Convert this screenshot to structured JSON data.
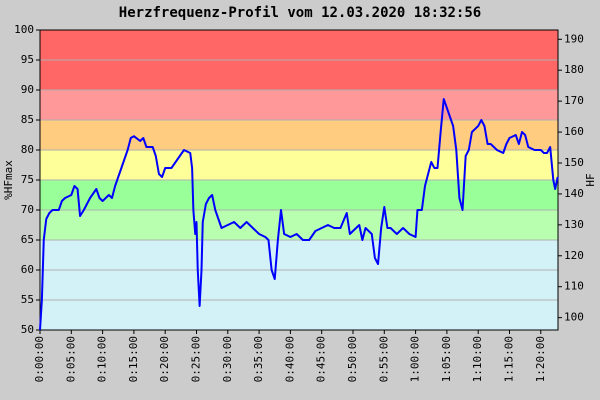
{
  "chart_data": {
    "type": "line",
    "title": "Herzfrequenz-Profil vom 12.03.2020 18:32:56",
    "y_label": "%HFmax",
    "y2_label": "HF",
    "color": "#0000ff",
    "grid": true,
    "xlim": [
      0,
      4965
    ],
    "ylim": [
      50,
      100
    ],
    "y2lim": [
      96,
      193
    ],
    "yticks": [
      50,
      55,
      60,
      65,
      70,
      75,
      80,
      85,
      90,
      95,
      100
    ],
    "y2ticks": [
      100,
      110,
      120,
      130,
      140,
      150,
      160,
      170,
      180,
      190
    ],
    "xticks": [
      {
        "value": 0,
        "label": "0:00:00"
      },
      {
        "value": 300,
        "label": "0:05:00"
      },
      {
        "value": 600,
        "label": "0:10:00"
      },
      {
        "value": 900,
        "label": "0:15:00"
      },
      {
        "value": 1200,
        "label": "0:20:00"
      },
      {
        "value": 1500,
        "label": "0:25:00"
      },
      {
        "value": 1800,
        "label": "0:30:00"
      },
      {
        "value": 2100,
        "label": "0:35:00"
      },
      {
        "value": 2400,
        "label": "0:40:00"
      },
      {
        "value": 2700,
        "label": "0:45:00"
      },
      {
        "value": 3000,
        "label": "0:50:00"
      },
      {
        "value": 3300,
        "label": "0:55:00"
      },
      {
        "value": 3600,
        "label": "1:00:00"
      },
      {
        "value": 3900,
        "label": "1:05:00"
      },
      {
        "value": 4200,
        "label": "1:10:00"
      },
      {
        "value": 4500,
        "label": "1:15:00"
      },
      {
        "value": 4800,
        "label": "1:20:00"
      }
    ],
    "bands": [
      {
        "from": 50,
        "to": 65,
        "color": "#d2f2f8"
      },
      {
        "from": 65,
        "to": 70,
        "color": "#b8ffb0"
      },
      {
        "from": 70,
        "to": 75,
        "color": "#99ff99"
      },
      {
        "from": 75,
        "to": 80,
        "color": "#ffff99"
      },
      {
        "from": 80,
        "to": 85,
        "color": "#ffcc80"
      },
      {
        "from": 85,
        "to": 90,
        "color": "#ff9999"
      },
      {
        "from": 90,
        "to": 100,
        "color": "#ff6666"
      }
    ],
    "x": [
      0,
      18,
      36,
      60,
      90,
      120,
      180,
      210,
      240,
      300,
      330,
      360,
      384,
      420,
      480,
      540,
      570,
      600,
      660,
      690,
      720,
      780,
      840,
      870,
      900,
      960,
      990,
      1020,
      1080,
      1110,
      1140,
      1170,
      1200,
      1260,
      1320,
      1380,
      1440,
      1458,
      1470,
      1488,
      1500,
      1512,
      1530,
      1548,
      1560,
      1590,
      1620,
      1650,
      1680,
      1740,
      1800,
      1860,
      1920,
      1980,
      2040,
      2100,
      2160,
      2190,
      2220,
      2250,
      2280,
      2310,
      2340,
      2400,
      2460,
      2520,
      2580,
      2640,
      2700,
      2760,
      2820,
      2880,
      2940,
      2970,
      3000,
      3060,
      3090,
      3120,
      3180,
      3210,
      3240,
      3270,
      3300,
      3330,
      3360,
      3420,
      3480,
      3540,
      3600,
      3618,
      3660,
      3690,
      3720,
      3750,
      3780,
      3810,
      3840,
      3870,
      3900,
      3960,
      3990,
      4020,
      4050,
      4080,
      4110,
      4140,
      4200,
      4230,
      4260,
      4290,
      4320,
      4380,
      4440,
      4470,
      4500,
      4560,
      4590,
      4620,
      4650,
      4680,
      4740,
      4800,
      4830,
      4860,
      4890,
      4920,
      4938,
      4962
    ],
    "values": [
      50,
      55,
      65,
      68.5,
      69.5,
      70,
      70,
      71.5,
      72,
      72.5,
      74,
      73.5,
      69,
      70,
      72,
      73.5,
      72,
      71.5,
      72.5,
      72,
      74,
      77,
      80,
      82,
      82.3,
      81.5,
      82,
      80.5,
      80.5,
      79,
      76,
      75.5,
      77,
      77,
      78.5,
      80,
      79.5,
      77,
      70,
      66,
      68,
      60,
      54,
      60,
      68,
      71,
      72,
      72.5,
      70,
      67,
      67.5,
      68,
      67,
      68,
      67,
      66,
      65.5,
      65,
      60,
      58.5,
      65,
      70,
      66,
      65.5,
      66,
      65,
      65,
      66.5,
      67,
      67.5,
      67,
      67,
      69.5,
      66,
      66.5,
      67.5,
      65,
      67,
      66,
      62,
      61,
      67,
      70.5,
      67,
      67,
      66,
      67,
      66,
      65.5,
      70,
      70,
      74,
      76,
      78,
      77,
      77,
      83,
      88.5,
      87,
      84,
      80,
      72,
      70,
      79,
      80,
      83,
      84,
      85,
      84,
      81,
      81,
      80,
      79.5,
      81,
      82,
      82.5,
      81,
      83,
      82.5,
      80.5,
      80,
      80,
      79.5,
      79.5,
      80.5,
      75,
      73.5,
      75.5
    ]
  }
}
